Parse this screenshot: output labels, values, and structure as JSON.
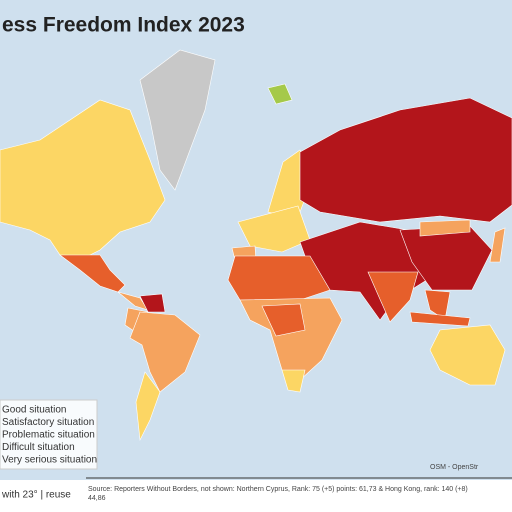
{
  "title": "ess Freedom Index 2023",
  "legend": {
    "items": [
      {
        "label": "Good situation",
        "color": "#a5c94a"
      },
      {
        "label": "Satisfactory situation",
        "color": "#fcd664"
      },
      {
        "label": "Problematic situation",
        "color": "#f5a35e"
      },
      {
        "label": "Difficult situation",
        "color": "#e65f2b"
      },
      {
        "label": "Very serious situation",
        "color": "#b3151b"
      }
    ]
  },
  "attribution": "OSM - OpenStr",
  "credit": "with 23° | reuse",
  "source": [
    "Source: Reporters Without Borders, not shown: Northern Cyprus, Rank: 75 (+5) points: 61,73 & Hong Kong, rank: 140 (+8)",
    "44,86"
  ]
}
